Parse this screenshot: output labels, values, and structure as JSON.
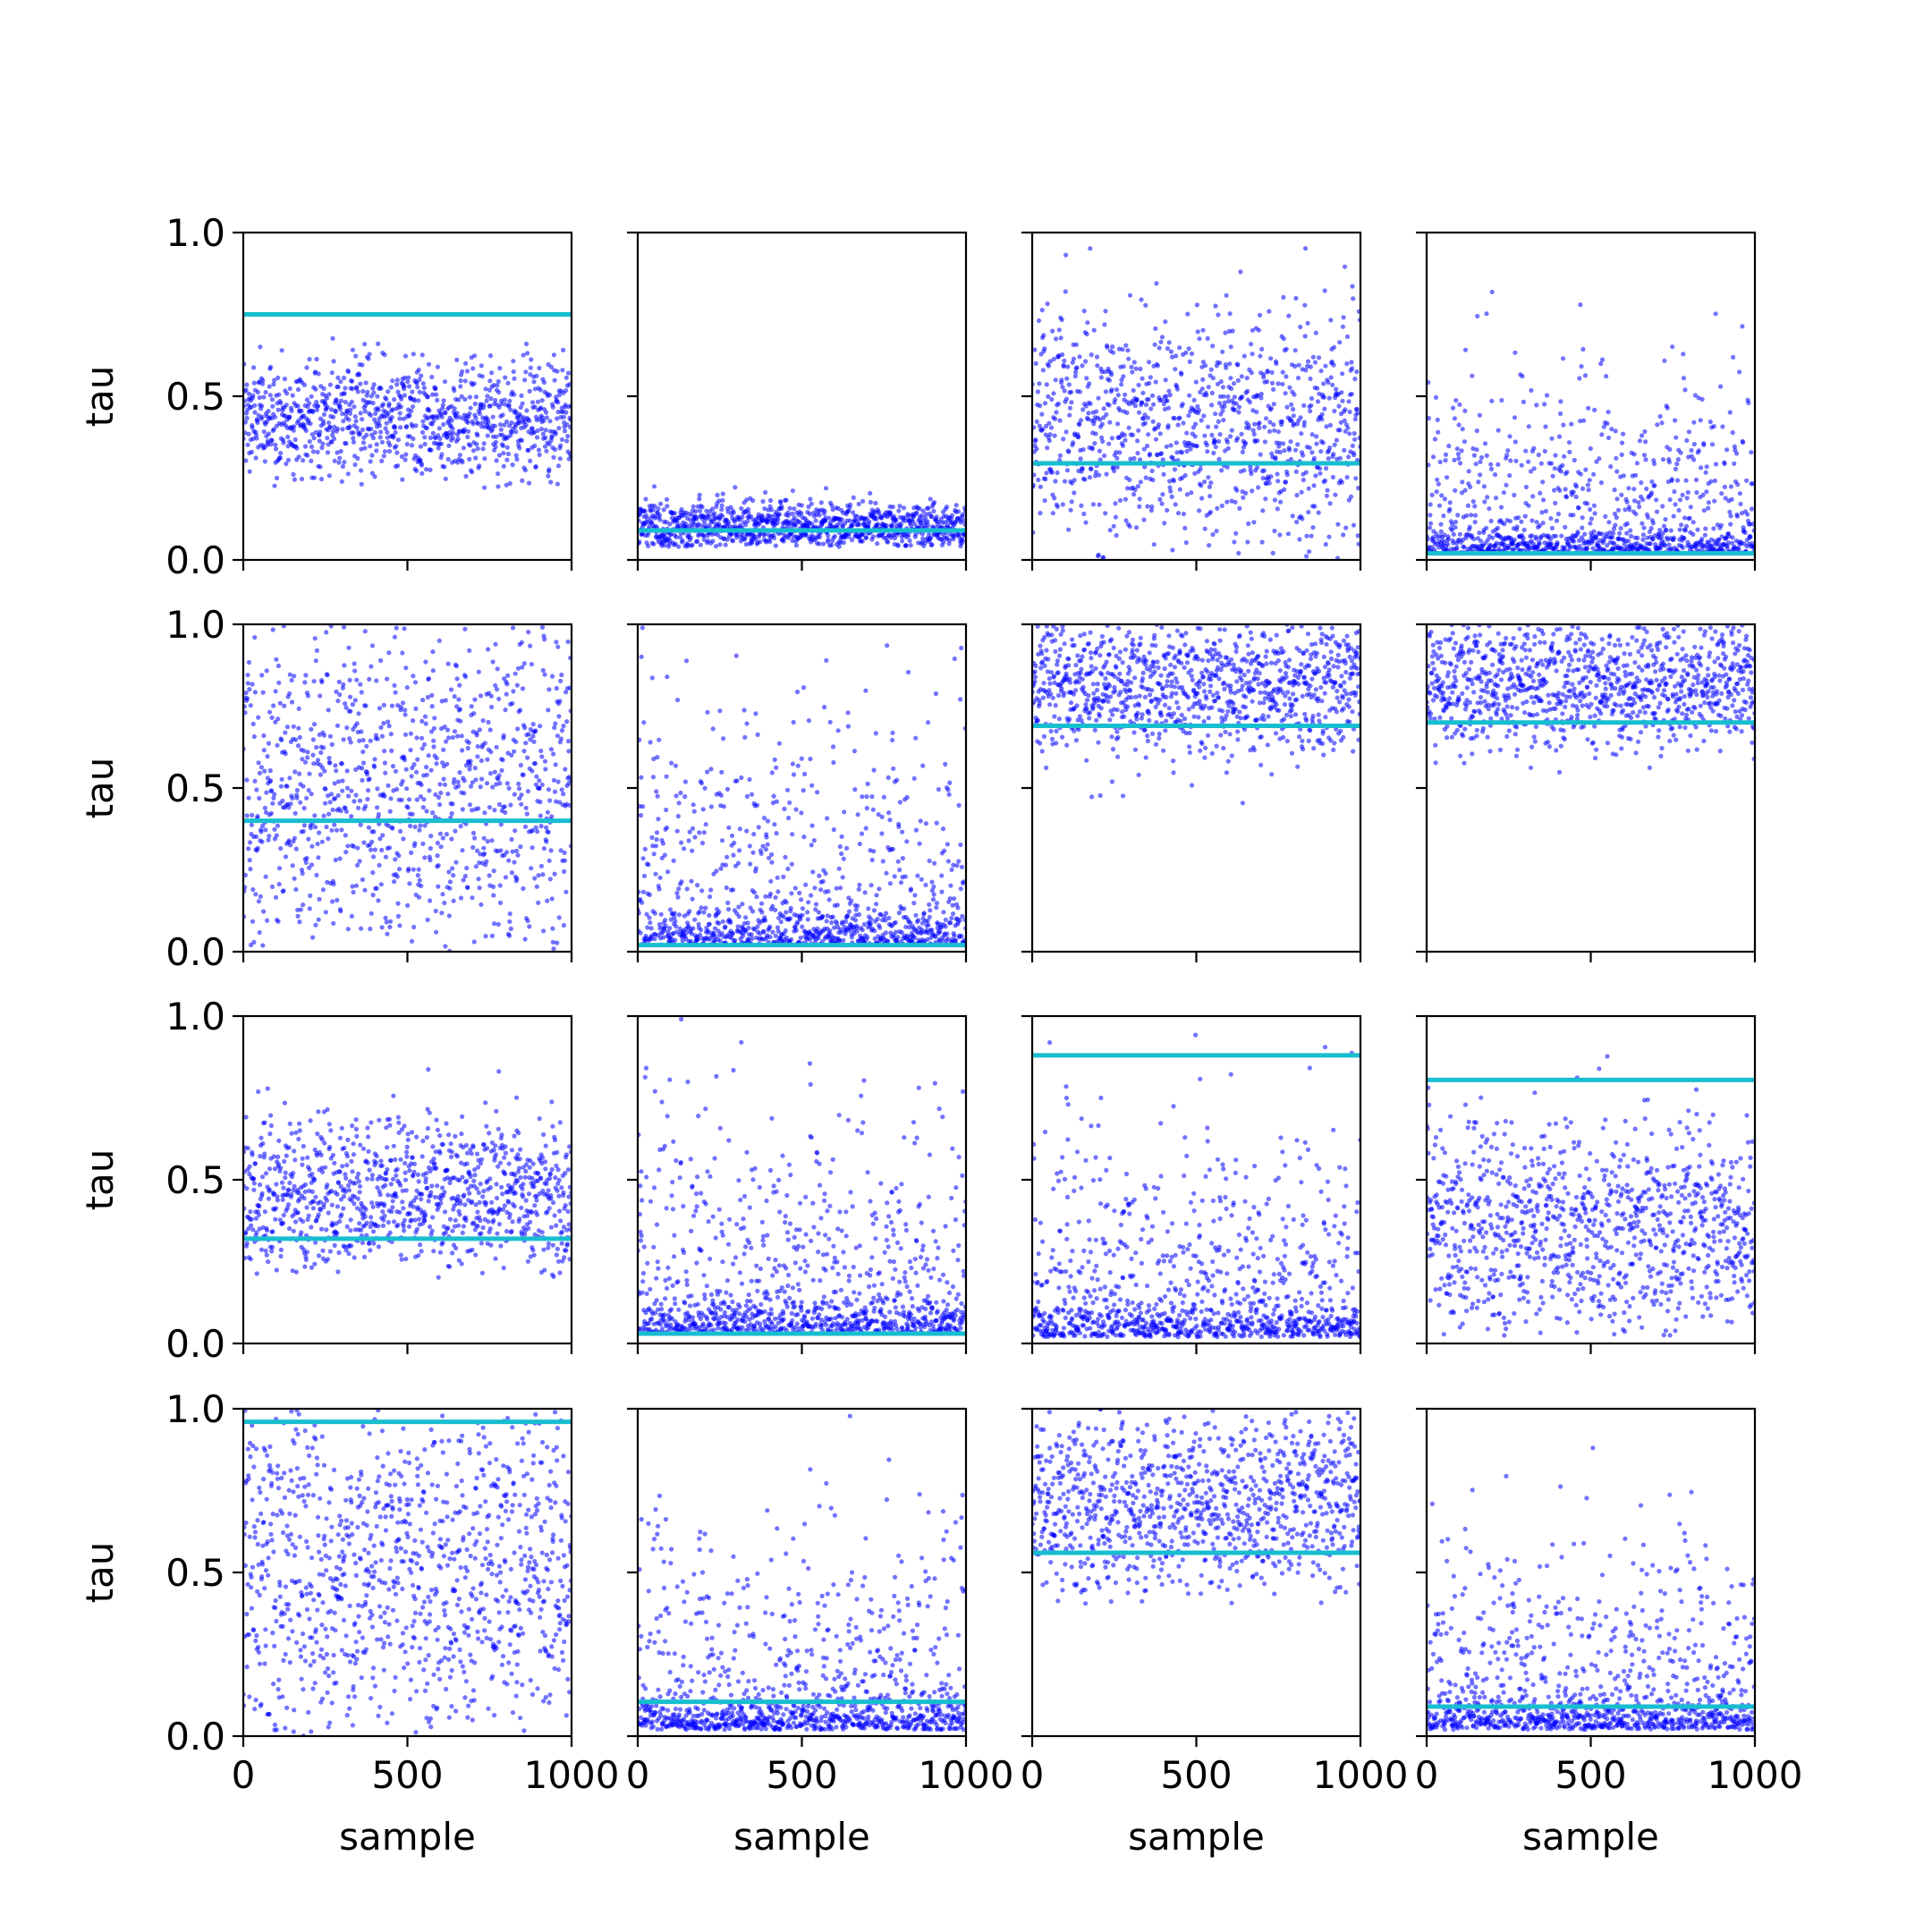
{
  "chart_data": {
    "type": "scatter",
    "layout": {
      "rows": 4,
      "cols": 4
    },
    "xlabel": "sample",
    "ylabel": "tau",
    "xlim": [
      0,
      1000
    ],
    "ylim": [
      0,
      1
    ],
    "xticks": [
      0,
      500,
      1000
    ],
    "yticks": [
      0.0,
      0.5,
      1.0
    ],
    "xtick_labels": [
      "0",
      "500",
      "1000"
    ],
    "ytick_labels": [
      "0.0",
      "0.5",
      "1.0"
    ],
    "grid": false,
    "points_per_panel": 1000,
    "colors": {
      "points": "#0000ff",
      "reference_line": "#17becf",
      "axes": "#000000"
    },
    "panels": [
      {
        "row": 0,
        "col": 0,
        "reference_value": 0.75,
        "sample_center": 0.43,
        "sample_spread": 0.09,
        "sample_range": [
          0.22,
          1.0
        ]
      },
      {
        "row": 0,
        "col": 1,
        "reference_value": 0.09,
        "sample_center": 0.1,
        "sample_spread": 0.04,
        "sample_range": [
          0.04,
          0.55
        ]
      },
      {
        "row": 0,
        "col": 2,
        "reference_value": 0.295,
        "sample_center": 0.4,
        "sample_spread": 0.18,
        "sample_range": [
          0.0,
          1.0
        ]
      },
      {
        "row": 0,
        "col": 3,
        "reference_value": 0.02,
        "sample_center": 0.02,
        "sample_spread": 0.25,
        "sample_range": [
          0.0,
          1.0
        ]
      },
      {
        "row": 1,
        "col": 0,
        "reference_value": 0.4,
        "sample_center": 0.5,
        "sample_spread": 0.29,
        "sample_range": [
          0.0,
          1.0
        ]
      },
      {
        "row": 1,
        "col": 1,
        "reference_value": 0.02,
        "sample_center": 0.02,
        "sample_spread": 0.35,
        "sample_range": [
          0.0,
          1.0
        ]
      },
      {
        "row": 1,
        "col": 2,
        "reference_value": 0.69,
        "sample_center": 0.82,
        "sample_spread": 0.11,
        "sample_range": [
          0.38,
          1.0
        ]
      },
      {
        "row": 1,
        "col": 3,
        "reference_value": 0.7,
        "sample_center": 0.82,
        "sample_spread": 0.1,
        "sample_range": [
          0.48,
          1.0
        ]
      },
      {
        "row": 2,
        "col": 0,
        "reference_value": 0.32,
        "sample_center": 0.45,
        "sample_spread": 0.12,
        "sample_range": [
          0.2,
          1.0
        ]
      },
      {
        "row": 2,
        "col": 1,
        "reference_value": 0.03,
        "sample_center": 0.03,
        "sample_spread": 0.35,
        "sample_range": [
          0.0,
          1.0
        ]
      },
      {
        "row": 2,
        "col": 2,
        "reference_value": 0.88,
        "sample_center": 0.02,
        "sample_spread": 0.3,
        "sample_range": [
          0.0,
          1.0
        ]
      },
      {
        "row": 2,
        "col": 3,
        "reference_value": 0.805,
        "sample_center": 0.35,
        "sample_spread": 0.16,
        "sample_range": [
          0.02,
          1.0
        ]
      },
      {
        "row": 3,
        "col": 0,
        "reference_value": 0.96,
        "sample_center": 0.5,
        "sample_spread": 0.29,
        "sample_range": [
          0.0,
          1.0
        ]
      },
      {
        "row": 3,
        "col": 1,
        "reference_value": 0.105,
        "sample_center": 0.02,
        "sample_spread": 0.3,
        "sample_range": [
          0.0,
          1.0
        ]
      },
      {
        "row": 3,
        "col": 2,
        "reference_value": 0.56,
        "sample_center": 0.72,
        "sample_spread": 0.14,
        "sample_range": [
          0.4,
          1.0
        ]
      },
      {
        "row": 3,
        "col": 3,
        "reference_value": 0.09,
        "sample_center": 0.02,
        "sample_spread": 0.3,
        "sample_range": [
          0.0,
          1.0
        ]
      }
    ]
  }
}
